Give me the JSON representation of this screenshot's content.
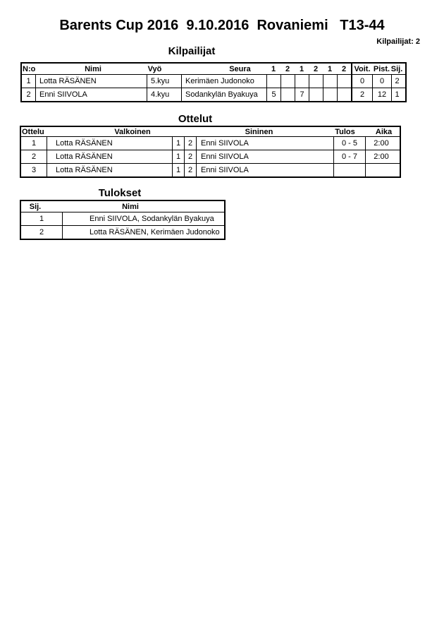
{
  "page": {
    "title": "Barents Cup 2016  9.10.2016  Rovaniemi   T13-44",
    "competitors_count_label": "Kilpailijat: 2"
  },
  "competitors": {
    "section_title": "Kilpailijat",
    "headers": {
      "no": "N:o",
      "name": "Nimi",
      "belt": "Vyö",
      "club": "Seura",
      "score_cols": [
        "1",
        "2",
        "1",
        "2",
        "1",
        "2"
      ],
      "wins": "Voit.",
      "points": "Pist.",
      "rank": "Sij."
    },
    "rows": [
      {
        "no": "1",
        "name": "Lotta RÄSÄNEN",
        "belt": "5.kyu",
        "club": "Kerimäen Judonoko",
        "scores": [
          "",
          "",
          "",
          "",
          "",
          ""
        ],
        "wins": "0",
        "points": "0",
        "rank": "2"
      },
      {
        "no": "2",
        "name": "Enni SIIVOLA",
        "belt": "4.kyu",
        "club": "Sodankylän Byakuya",
        "scores": [
          "5",
          "",
          "7",
          "",
          "",
          ""
        ],
        "wins": "2",
        "points": "12",
        "rank": "1"
      }
    ]
  },
  "matches": {
    "section_title": "Ottelut",
    "headers": {
      "match": "Ottelu",
      "white": "Valkoinen",
      "col1": "1",
      "col2": "2",
      "blue": "Sininen",
      "result": "Tulos",
      "time": "Aika"
    },
    "rows": [
      {
        "no": "1",
        "white": "Lotta RÄSÄNEN",
        "c1": "1",
        "c2": "2",
        "blue": "Enni SIIVOLA",
        "result": "0 - 5",
        "time": "2:00"
      },
      {
        "no": "2",
        "white": "Lotta RÄSÄNEN",
        "c1": "1",
        "c2": "2",
        "blue": "Enni SIIVOLA",
        "result": "0 - 7",
        "time": "2:00"
      },
      {
        "no": "3",
        "white": "Lotta RÄSÄNEN",
        "c1": "1",
        "c2": "2",
        "blue": "Enni SIIVOLA",
        "result": "",
        "time": ""
      }
    ]
  },
  "results": {
    "section_title": "Tulokset",
    "headers": {
      "rank": "Sij.",
      "name": "Nimi"
    },
    "rows": [
      {
        "rank": "1",
        "name": "Enni SIIVOLA, Sodankylän Byakuya"
      },
      {
        "rank": "2",
        "name": "Lotta RÄSÄNEN, Kerimäen Judonoko"
      }
    ]
  }
}
